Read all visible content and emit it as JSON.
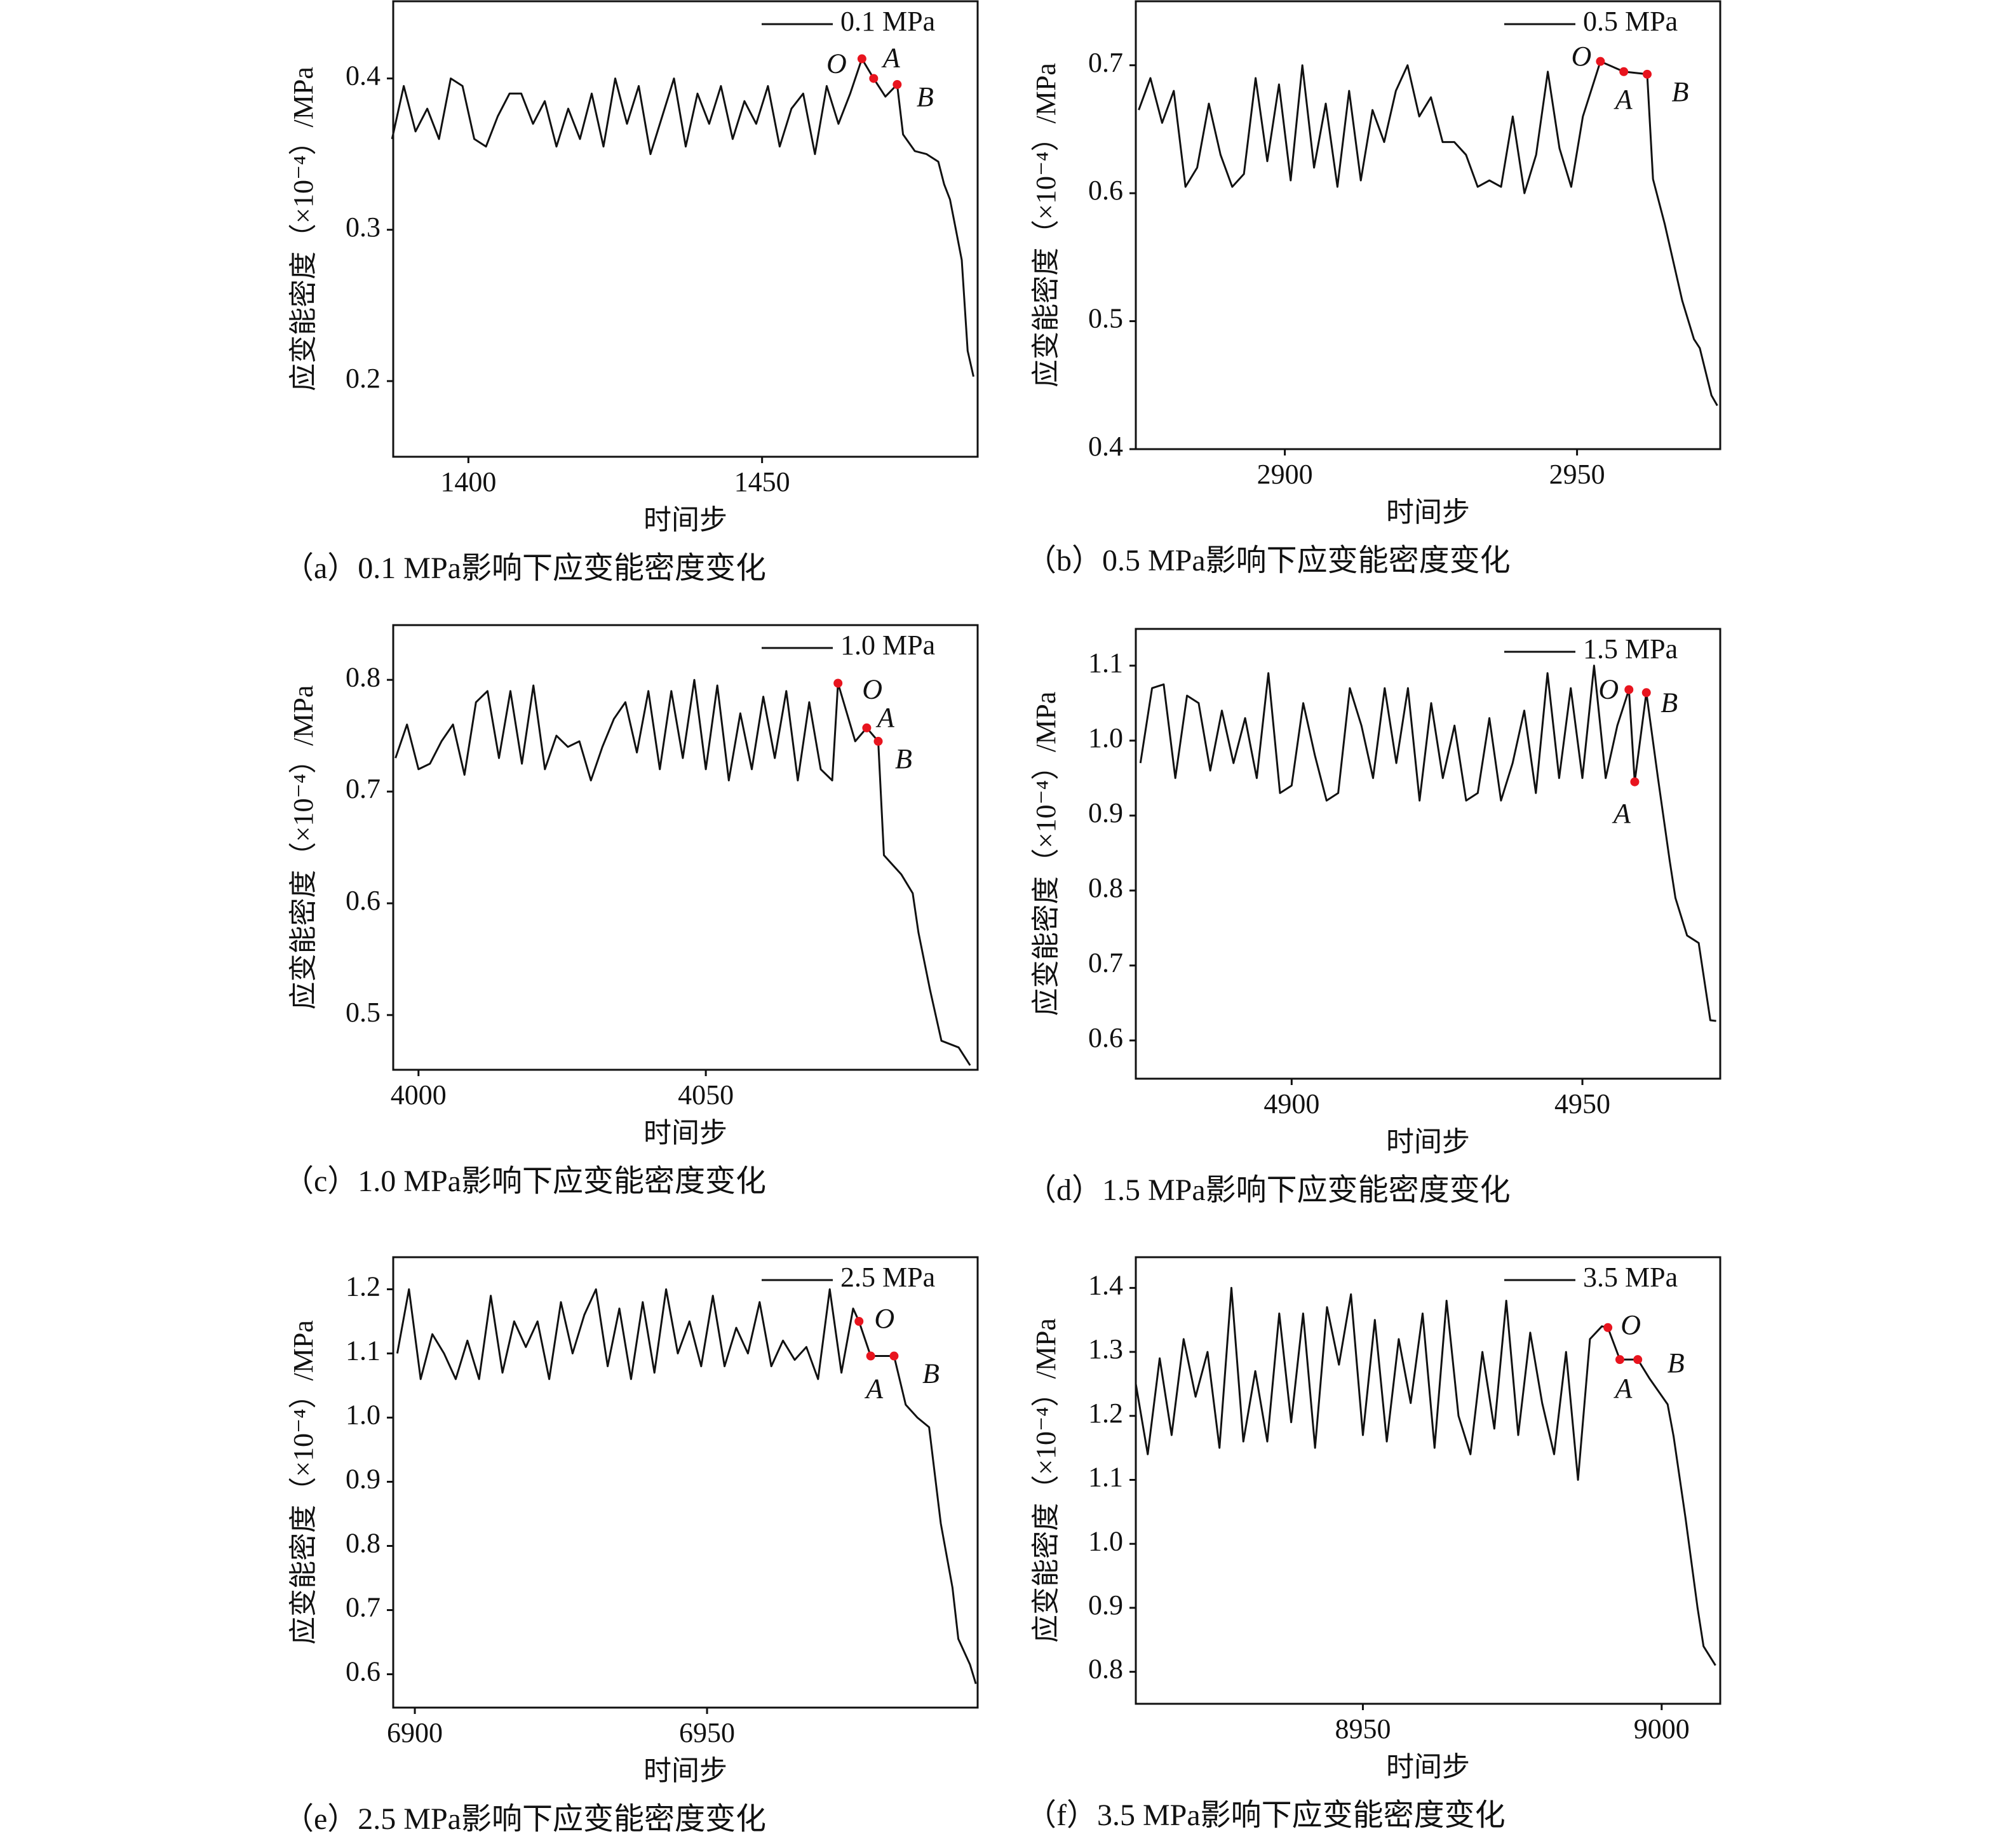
{
  "chart_data": [
    {
      "type": "line",
      "caption": "（a）0.1 MPa影响下应变能密度变化",
      "xlabel": "时间步",
      "ylabel": "应变能密度（×10⁻⁴）/MPa",
      "legend": "upper right",
      "xlim": [
        1387.2,
        1486.7
      ],
      "ylim": [
        0.15,
        0.451
      ],
      "xticks": [
        1400,
        1450
      ],
      "yticks": [
        0.2,
        0.3,
        0.4
      ],
      "x": [
        1387,
        1389,
        1391,
        1393,
        1395,
        1397,
        1399,
        1401,
        1403,
        1405,
        1407,
        1409,
        1411,
        1413,
        1415,
        1417,
        1419,
        1421,
        1423,
        1425,
        1427,
        1429,
        1431,
        1433,
        1435,
        1437,
        1439,
        1441,
        1443,
        1445,
        1447,
        1449,
        1451,
        1453,
        1455,
        1457,
        1459,
        1461,
        1463,
        1465,
        1467,
        1469,
        1471,
        1473,
        1474,
        1476,
        1478,
        1480,
        1481,
        1482,
        1483,
        1484,
        1485,
        1486
      ],
      "series": [
        {
          "name": "0.1 MPa",
          "color": "#111111",
          "values": [
            0.36,
            0.395,
            0.365,
            0.38,
            0.36,
            0.4,
            0.395,
            0.36,
            0.355,
            0.375,
            0.39,
            0.39,
            0.37,
            0.385,
            0.355,
            0.38,
            0.36,
            0.39,
            0.355,
            0.4,
            0.37,
            0.395,
            0.35,
            0.375,
            0.4,
            0.355,
            0.39,
            0.37,
            0.395,
            0.36,
            0.385,
            0.37,
            0.395,
            0.355,
            0.38,
            0.39,
            0.35,
            0.395,
            0.37,
            0.39,
            0.413,
            0.4,
            0.388,
            0.396,
            0.363,
            0.352,
            0.35,
            0.345,
            0.33,
            0.32,
            0.3,
            0.28,
            0.22,
            0.203
          ]
        }
      ],
      "points": [
        {
          "label": "O",
          "x": 1467,
          "y": 0.413,
          "color": "#e8141e"
        },
        {
          "label": "A",
          "x": 1469,
          "y": 0.4,
          "color": "#e8141e"
        },
        {
          "label": "B",
          "x": 1473,
          "y": 0.396,
          "color": "#e8141e"
        }
      ]
    },
    {
      "type": "line",
      "caption": "（b）0.5 MPa影响下应变能密度变化",
      "xlabel": "时间步",
      "ylabel": "应变能密度（×10⁻⁴）/MPa",
      "legend": "upper right",
      "xlim": [
        2874.5,
        2974.5
      ],
      "ylim": [
        0.4,
        0.75
      ],
      "xticks": [
        2900,
        2950
      ],
      "yticks": [
        0.4,
        0.5,
        0.6,
        0.7
      ],
      "x": [
        2875,
        2877,
        2879,
        2881,
        2883,
        2885,
        2887,
        2889,
        2891,
        2893,
        2895,
        2897,
        2899,
        2901,
        2903,
        2905,
        2907,
        2909,
        2911,
        2913,
        2915,
        2917,
        2919,
        2921,
        2923,
        2925,
        2927,
        2929,
        2931,
        2933,
        2935,
        2937,
        2939,
        2941,
        2943,
        2945,
        2947,
        2949,
        2951,
        2954,
        2958,
        2962,
        2963,
        2965,
        2967,
        2968,
        2970,
        2971,
        2973,
        2974
      ],
      "series": [
        {
          "name": "0.5 MPa",
          "color": "#111111",
          "values": [
            0.665,
            0.69,
            0.655,
            0.68,
            0.605,
            0.62,
            0.67,
            0.63,
            0.605,
            0.615,
            0.69,
            0.625,
            0.685,
            0.61,
            0.7,
            0.62,
            0.67,
            0.605,
            0.68,
            0.61,
            0.665,
            0.64,
            0.68,
            0.7,
            0.66,
            0.675,
            0.64,
            0.64,
            0.63,
            0.605,
            0.61,
            0.605,
            0.66,
            0.6,
            0.63,
            0.695,
            0.635,
            0.605,
            0.66,
            0.703,
            0.695,
            0.693,
            0.611,
            0.576,
            0.536,
            0.516,
            0.486,
            0.479,
            0.442,
            0.434
          ]
        }
      ],
      "points": [
        {
          "label": "O",
          "x": 2954,
          "y": 0.703,
          "color": "#e8141e"
        },
        {
          "label": "A",
          "x": 2958,
          "y": 0.695,
          "color": "#e8141e"
        },
        {
          "label": "B",
          "x": 2962,
          "y": 0.693,
          "color": "#e8141e"
        }
      ]
    },
    {
      "type": "line",
      "caption": "（c）1.0 MPa影响下应变能密度变化",
      "xlabel": "时间步",
      "ylabel": "应变能密度（×10⁻⁴）/MPa",
      "legend": "upper right",
      "xlim": [
        3995.6,
        4097.3
      ],
      "ylim": [
        0.451,
        0.849
      ],
      "xticks": [
        4000,
        4050
      ],
      "yticks": [
        0.5,
        0.6,
        0.7,
        0.8
      ],
      "x": [
        3996,
        3998,
        4000,
        4002,
        4004,
        4006,
        4008,
        4010,
        4012,
        4014,
        4016,
        4018,
        4020,
        4022,
        4024,
        4026,
        4028,
        4030,
        4032,
        4034,
        4036,
        4038,
        4040,
        4042,
        4044,
        4046,
        4048,
        4050,
        4052,
        4054,
        4056,
        4058,
        4060,
        4062,
        4064,
        4066,
        4068,
        4070,
        4072,
        4073,
        4076,
        4078,
        4080,
        4081,
        4084,
        4086,
        4087,
        4089,
        4091,
        4094,
        4096
      ],
      "series": [
        {
          "name": "1.0 MPa",
          "color": "#111111",
          "values": [
            0.73,
            0.76,
            0.72,
            0.725,
            0.745,
            0.76,
            0.715,
            0.78,
            0.79,
            0.73,
            0.79,
            0.725,
            0.795,
            0.72,
            0.75,
            0.74,
            0.745,
            0.71,
            0.74,
            0.765,
            0.78,
            0.735,
            0.79,
            0.72,
            0.79,
            0.73,
            0.8,
            0.72,
            0.795,
            0.71,
            0.77,
            0.72,
            0.785,
            0.73,
            0.79,
            0.71,
            0.78,
            0.72,
            0.71,
            0.797,
            0.745,
            0.757,
            0.745,
            0.643,
            0.626,
            0.609,
            0.574,
            0.523,
            0.477,
            0.471,
            0.455
          ]
        }
      ],
      "points": [
        {
          "label": "O",
          "x": 4073,
          "y": 0.797,
          "color": "#e8141e"
        },
        {
          "label": "A",
          "x": 4078,
          "y": 0.757,
          "color": "#e8141e"
        },
        {
          "label": "B",
          "x": 4080,
          "y": 0.745,
          "color": "#e8141e"
        }
      ]
    },
    {
      "type": "line",
      "caption": "（d）1.5 MPa影响下应变能密度变化",
      "xlabel": "时间步",
      "ylabel": "应变能密度（×10⁻⁴）/MPa",
      "legend": "upper right",
      "xlim": [
        4873.2,
        4973.7
      ],
      "ylim": [
        0.549,
        1.149
      ],
      "xticks": [
        4900,
        4950
      ],
      "yticks": [
        0.6,
        0.7,
        0.8,
        0.9,
        {
          "value": 1,
          "label": "1.0"
        },
        1.1
      ],
      "x": [
        4874,
        4876,
        4878,
        4880,
        4882,
        4884,
        4886,
        4888,
        4890,
        4892,
        4894,
        4896,
        4898,
        4900,
        4902,
        4904,
        4906,
        4908,
        4910,
        4912,
        4914,
        4916,
        4918,
        4920,
        4922,
        4924,
        4926,
        4928,
        4930,
        4932,
        4934,
        4936,
        4938,
        4940,
        4942,
        4944,
        4946,
        4948,
        4950,
        4952,
        4954,
        4956,
        4958,
        4959,
        4961,
        4963,
        4965,
        4966,
        4968,
        4970,
        4972,
        4973
      ],
      "series": [
        {
          "name": "1.5 MPa",
          "color": "#111111",
          "values": [
            0.97,
            1.07,
            1.075,
            0.95,
            1.06,
            1.05,
            0.96,
            1.04,
            0.97,
            1.03,
            0.95,
            1.09,
            0.93,
            0.94,
            1.05,
            0.98,
            0.92,
            0.93,
            1.07,
            1.02,
            0.95,
            1.07,
            0.97,
            1.07,
            0.92,
            1.05,
            0.95,
            1.02,
            0.92,
            0.93,
            1.03,
            0.92,
            0.97,
            1.04,
            0.93,
            1.09,
            0.95,
            1.07,
            0.95,
            1.1,
            0.95,
            1.02,
            1.068,
            0.945,
            1.064,
            0.95,
            0.84,
            0.79,
            0.74,
            0.73,
            0.627,
            0.626
          ]
        }
      ],
      "points": [
        {
          "label": "O",
          "x": 4958,
          "y": 1.068,
          "color": "#e8141e"
        },
        {
          "label": "A",
          "x": 4959,
          "y": 0.945,
          "color": "#e8141e"
        },
        {
          "label": "B",
          "x": 4961,
          "y": 1.064,
          "color": "#e8141e"
        }
      ]
    },
    {
      "type": "line",
      "caption": "（e）2.5 MPa影响下应变能密度变化",
      "xlabel": "时间步",
      "ylabel": "应变能密度（×10⁻⁴）/MPa",
      "legend": "upper right",
      "xlim": [
        6896.3,
        6996.3
      ],
      "ylim": [
        0.548,
        1.25
      ],
      "xticks": [
        6900,
        6950
      ],
      "yticks": [
        0.6,
        0.7,
        0.8,
        0.9,
        {
          "value": 1,
          "label": "1.0"
        },
        1.1,
        1.2
      ],
      "x": [
        6897,
        6899,
        6901,
        6903,
        6905,
        6907,
        6909,
        6911,
        6913,
        6915,
        6917,
        6919,
        6921,
        6923,
        6925,
        6927,
        6929,
        6931,
        6933,
        6935,
        6937,
        6939,
        6941,
        6943,
        6945,
        6947,
        6949,
        6951,
        6953,
        6955,
        6957,
        6959,
        6961,
        6963,
        6965,
        6967,
        6969,
        6971,
        6973,
        6975,
        6976,
        6978,
        6982,
        6984,
        6986,
        6988,
        6990,
        6992,
        6993,
        6995,
        6996
      ],
      "series": [
        {
          "name": "2.5 MPa",
          "color": "#111111",
          "values": [
            1.1,
            1.2,
            1.06,
            1.13,
            1.1,
            1.06,
            1.12,
            1.06,
            1.19,
            1.07,
            1.15,
            1.11,
            1.15,
            1.06,
            1.18,
            1.1,
            1.16,
            1.2,
            1.08,
            1.17,
            1.06,
            1.18,
            1.07,
            1.2,
            1.1,
            1.15,
            1.08,
            1.19,
            1.08,
            1.14,
            1.1,
            1.18,
            1.08,
            1.12,
            1.09,
            1.11,
            1.06,
            1.2,
            1.07,
            1.17,
            1.15,
            1.096,
            1.096,
            1.02,
            1.0,
            0.985,
            0.835,
            0.735,
            0.655,
            0.615,
            0.585
          ]
        }
      ],
      "points": [
        {
          "label": "O",
          "x": 6976,
          "y": 1.15,
          "color": "#e8141e"
        },
        {
          "label": "A",
          "x": 6978,
          "y": 1.096,
          "color": "#e8141e"
        },
        {
          "label": "B",
          "x": 6982,
          "y": 1.096,
          "color": "#e8141e"
        }
      ]
    },
    {
      "type": "line",
      "caption": "（f）3.5 MPa影响下应变能密度变化",
      "xlabel": "时间步",
      "ylabel": "应变能密度（×10⁻⁴）/MPa",
      "legend": "upper right",
      "xlim": [
        8912,
        9009.8
      ],
      "ylim": [
        0.75,
        1.448
      ],
      "xticks": [
        8950,
        9000
      ],
      "yticks": [
        0.8,
        0.9,
        {
          "value": 1,
          "label": "1.0"
        },
        1.1,
        1.2,
        1.3,
        1.4
      ],
      "x": [
        8912,
        8914,
        8916,
        8918,
        8920,
        8922,
        8924,
        8926,
        8928,
        8930,
        8932,
        8934,
        8936,
        8938,
        8940,
        8942,
        8944,
        8946,
        8948,
        8950,
        8952,
        8954,
        8956,
        8958,
        8960,
        8962,
        8964,
        8966,
        8968,
        8970,
        8972,
        8974,
        8976,
        8978,
        8980,
        8982,
        8984,
        8986,
        8988,
        8990,
        8991,
        8993,
        8996,
        8998,
        9001,
        9002,
        9004,
        9006,
        9007,
        9009
      ],
      "series": [
        {
          "name": "3.5 MPa",
          "color": "#111111",
          "values": [
            1.25,
            1.14,
            1.29,
            1.17,
            1.32,
            1.23,
            1.3,
            1.15,
            1.4,
            1.16,
            1.27,
            1.16,
            1.36,
            1.19,
            1.36,
            1.15,
            1.37,
            1.28,
            1.39,
            1.17,
            1.35,
            1.16,
            1.32,
            1.22,
            1.36,
            1.15,
            1.38,
            1.2,
            1.14,
            1.3,
            1.18,
            1.38,
            1.17,
            1.33,
            1.22,
            1.14,
            1.3,
            1.1,
            1.32,
            1.34,
            1.338,
            1.288,
            1.288,
            1.258,
            1.218,
            1.168,
            1.04,
            0.9,
            0.84,
            0.81
          ]
        }
      ],
      "points": [
        {
          "label": "O",
          "x": 8991,
          "y": 1.338,
          "color": "#e8141e"
        },
        {
          "label": "A",
          "x": 8993,
          "y": 1.288,
          "color": "#e8141e"
        },
        {
          "label": "B",
          "x": 8996,
          "y": 1.288,
          "color": "#e8141e"
        }
      ]
    }
  ]
}
